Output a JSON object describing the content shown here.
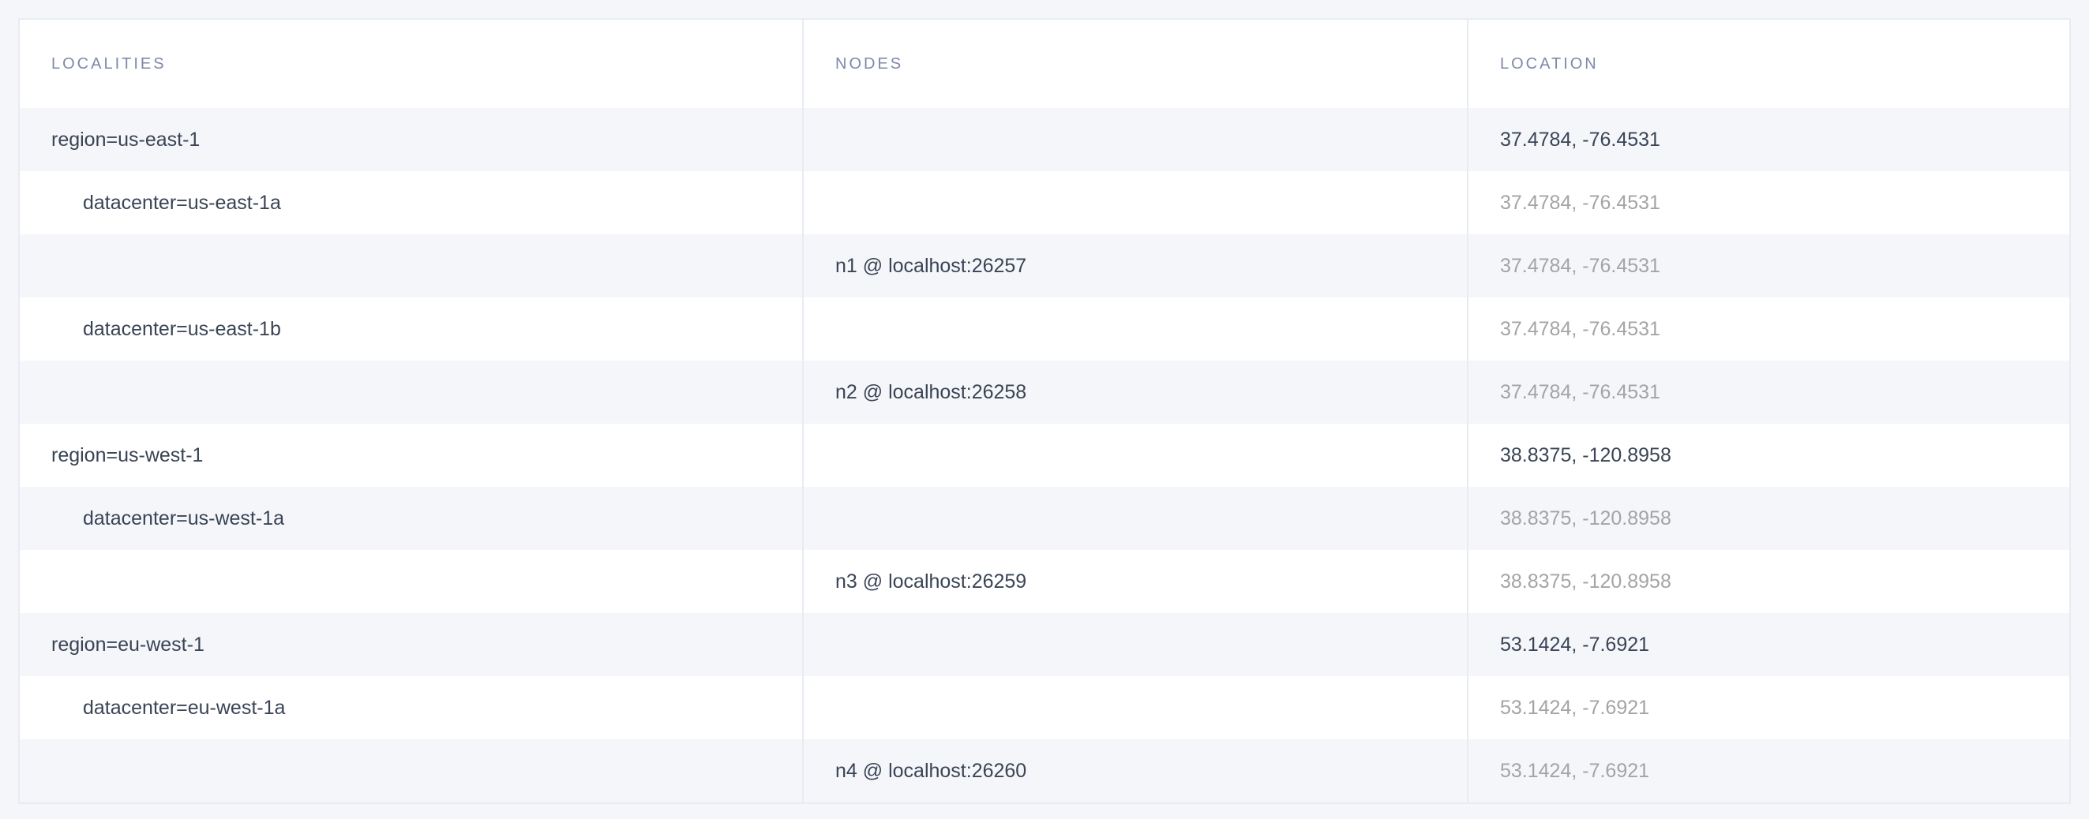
{
  "columns": [
    "LOCALITIES",
    "NODES",
    "LOCATION"
  ],
  "rows": [
    {
      "locality": "region=us-east-1",
      "node": "",
      "location": "37.4784, -76.4531",
      "level": 0
    },
    {
      "locality": "datacenter=us-east-1a",
      "node": "",
      "location": "37.4784, -76.4531",
      "level": 1
    },
    {
      "locality": "",
      "node": "n1 @ localhost:26257",
      "location": "37.4784, -76.4531",
      "level": 2
    },
    {
      "locality": "datacenter=us-east-1b",
      "node": "",
      "location": "37.4784, -76.4531",
      "level": 1
    },
    {
      "locality": "",
      "node": "n2 @ localhost:26258",
      "location": "37.4784, -76.4531",
      "level": 2
    },
    {
      "locality": "region=us-west-1",
      "node": "",
      "location": "38.8375, -120.8958",
      "level": 0
    },
    {
      "locality": "datacenter=us-west-1a",
      "node": "",
      "location": "38.8375, -120.8958",
      "level": 1
    },
    {
      "locality": "",
      "node": "n3 @ localhost:26259",
      "location": "38.8375, -120.8958",
      "level": 2
    },
    {
      "locality": "region=eu-west-1",
      "node": "",
      "location": "53.1424, -7.6921",
      "level": 0
    },
    {
      "locality": "datacenter=eu-west-1a",
      "node": "",
      "location": "53.1424, -7.6921",
      "level": 1
    },
    {
      "locality": "",
      "node": "n4 @ localhost:26260",
      "location": "53.1424, -7.6921",
      "level": 2
    }
  ],
  "colors": {
    "text": "#394455",
    "muted": "#a4a4a4",
    "header": "#7e89a9",
    "stripe": "#f5f6fa"
  }
}
